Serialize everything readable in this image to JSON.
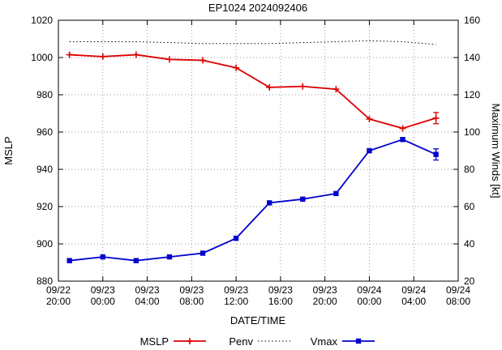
{
  "chart_data": {
    "type": "line",
    "title": "EP1024 2024092406",
    "xlabel": "DATE/TIME",
    "ylabel_left": "MSLP",
    "ylabel_right": "Maximum Winds [kt]",
    "grid": true,
    "legend_position": "bottom-center",
    "x_range_hours": [
      0,
      36
    ],
    "x_ticks": [
      {
        "hour": 0,
        "date": "09/22",
        "time": "20:00"
      },
      {
        "hour": 4,
        "date": "09/23",
        "time": "00:00"
      },
      {
        "hour": 8,
        "date": "09/23",
        "time": "04:00"
      },
      {
        "hour": 12,
        "date": "09/23",
        "time": "08:00"
      },
      {
        "hour": 16,
        "date": "09/23",
        "time": "12:00"
      },
      {
        "hour": 20,
        "date": "09/23",
        "time": "16:00"
      },
      {
        "hour": 24,
        "date": "09/23",
        "time": "20:00"
      },
      {
        "hour": 28,
        "date": "09/24",
        "time": "00:00"
      },
      {
        "hour": 32,
        "date": "09/24",
        "time": "04:00"
      },
      {
        "hour": 36,
        "date": "09/24",
        "time": "08:00"
      }
    ],
    "left_axis": {
      "lim": [
        880,
        1020
      ],
      "ticks": [
        880,
        900,
        920,
        940,
        960,
        980,
        1000,
        1020
      ]
    },
    "right_axis": {
      "lim": [
        20,
        160
      ],
      "ticks": [
        20,
        40,
        60,
        80,
        100,
        120,
        140,
        160
      ]
    },
    "series": [
      {
        "name": "MSLP",
        "axis": "left",
        "color": "#dd0000",
        "marker": "plus",
        "line": "solid",
        "x_hours": [
          1,
          4,
          7,
          10,
          13,
          16,
          19,
          22,
          25,
          28,
          31,
          34
        ],
        "values": [
          1001.5,
          1000.5,
          1001.5,
          999,
          998.5,
          994.5,
          984,
          984.5,
          983,
          967,
          962,
          967.5
        ],
        "error_bar_last": [
          964.5,
          970.5
        ]
      },
      {
        "name": "Penv",
        "axis": "left",
        "color": "#000000",
        "marker": "none",
        "line": "dotted",
        "x_hours": [
          1,
          4,
          7,
          10,
          13,
          16,
          19,
          22,
          25,
          28,
          31,
          34
        ],
        "values": [
          1008.5,
          1008.5,
          1008.5,
          1008,
          1007.5,
          1007.5,
          1007.5,
          1008,
          1008.5,
          1009,
          1008.5,
          1007
        ]
      },
      {
        "name": "Vmax",
        "axis": "right",
        "color": "#0000cc",
        "marker": "square",
        "line": "solid",
        "x_hours": [
          1,
          4,
          7,
          10,
          13,
          16,
          19,
          22,
          25,
          28,
          31,
          34
        ],
        "values": [
          31,
          33,
          31,
          33,
          35,
          43,
          62,
          64,
          67,
          90,
          96,
          88
        ],
        "error_bar_last": [
          85,
          91
        ]
      }
    ]
  }
}
